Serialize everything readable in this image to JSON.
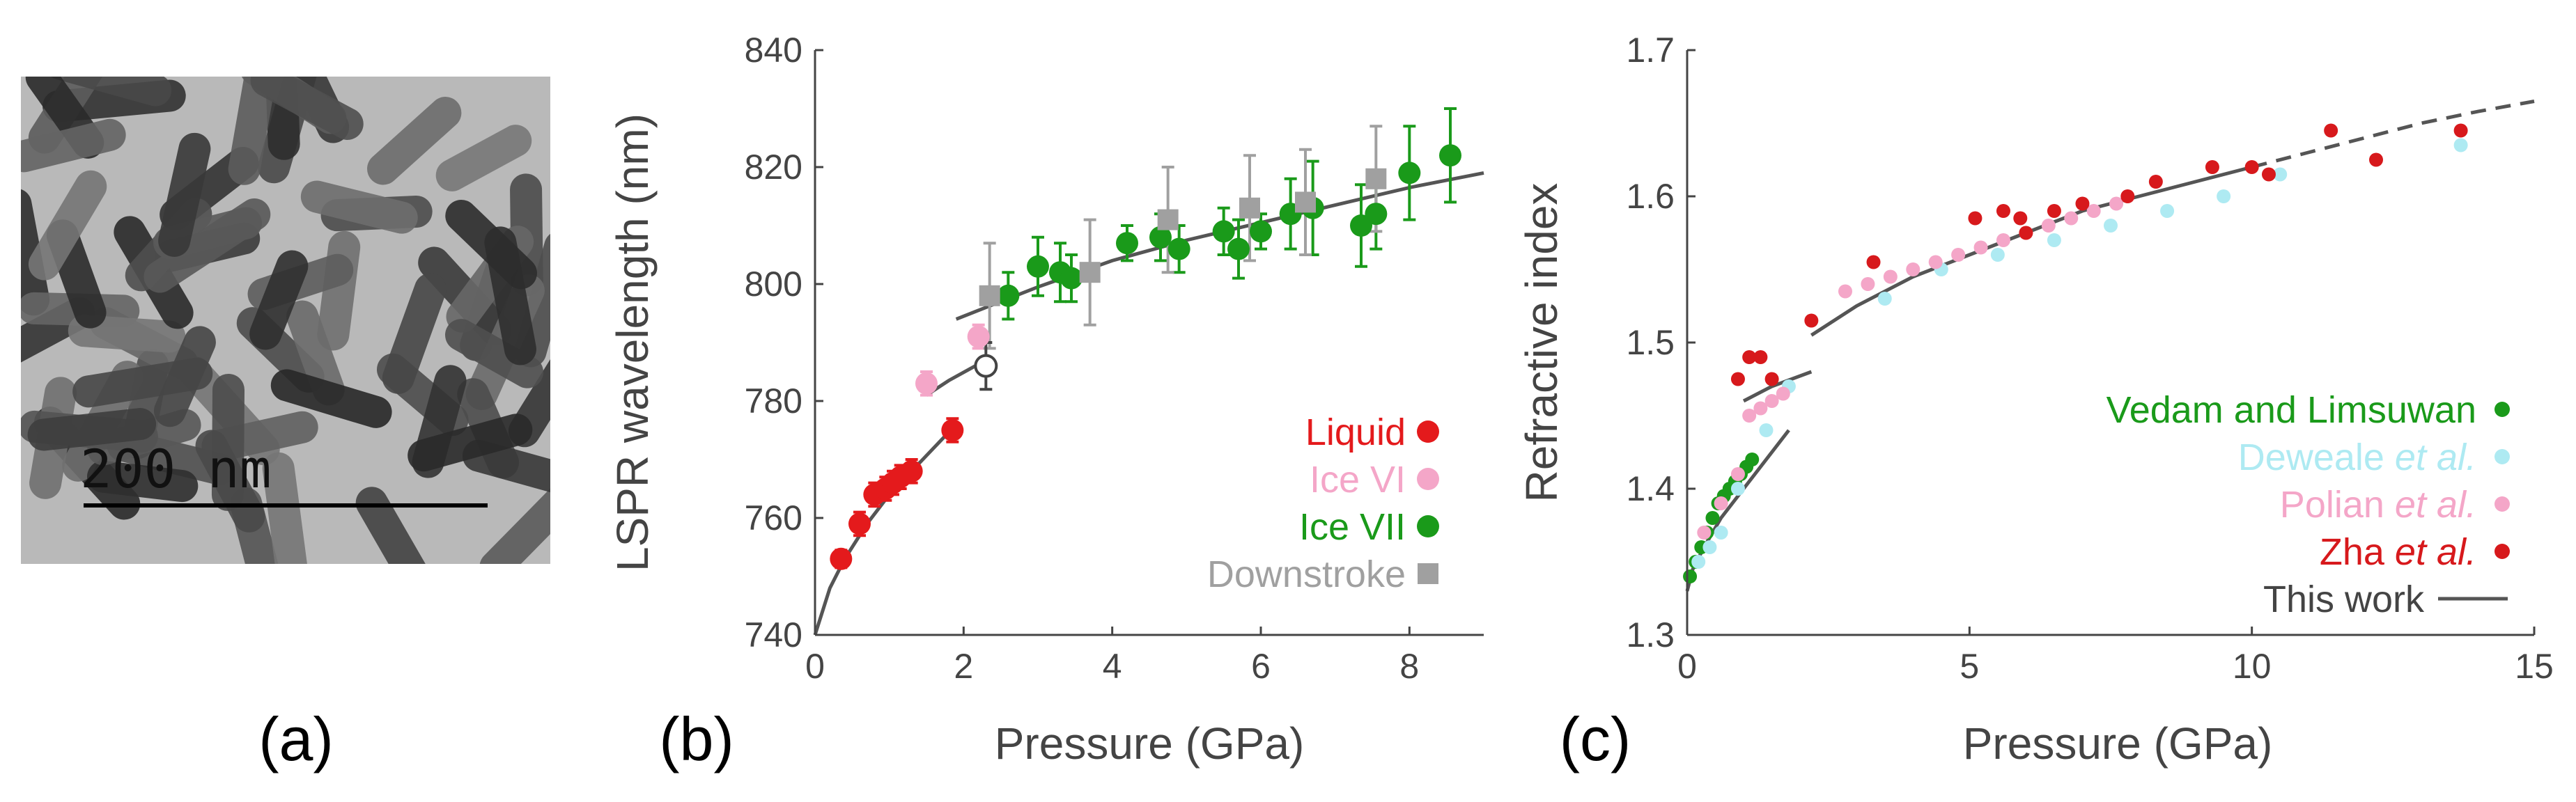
{
  "panel_labels": [
    "(a)",
    "(b)",
    "(c)"
  ],
  "image_a": {
    "scale_bar_label": "200 nm"
  },
  "chart_data": [
    {
      "type": "scatter",
      "panel": "(b)",
      "title": "",
      "xlabel": "Pressure (GPa)",
      "ylabel": "LSPR wavelength (nm)",
      "xlim": [
        0,
        9
      ],
      "ylim": [
        740,
        840
      ],
      "xticks": [
        0,
        2,
        4,
        6,
        8
      ],
      "yticks": [
        740,
        760,
        780,
        800,
        820,
        840
      ],
      "legend": {
        "position": "bottom-right"
      },
      "series": [
        {
          "name": "Liquid",
          "color": "#e41a1c",
          "marker": "circle",
          "points": [
            [
              0.35,
              753
            ],
            [
              0.6,
              759
            ],
            [
              0.8,
              764
            ],
            [
              0.95,
              765
            ],
            [
              1.05,
              766
            ],
            [
              1.15,
              767
            ],
            [
              1.3,
              768
            ],
            [
              1.85,
              775
            ]
          ],
          "errors": [
            1.5,
            2,
            2,
            2,
            2,
            2,
            2,
            2
          ]
        },
        {
          "name": "Ice VI",
          "color": "#f4a6c8",
          "marker": "circle",
          "points": [
            [
              1.5,
              783
            ],
            [
              2.2,
              791
            ]
          ],
          "errors": [
            2,
            2
          ]
        },
        {
          "name": "Ice VII",
          "color": "#1a9a1a",
          "marker": "circle",
          "points": [
            [
              2.6,
              798
            ],
            [
              3.0,
              803
            ],
            [
              3.3,
              802
            ],
            [
              3.45,
              801
            ],
            [
              4.2,
              807
            ],
            [
              4.65,
              808
            ],
            [
              4.9,
              806
            ],
            [
              5.5,
              809
            ],
            [
              5.7,
              806
            ],
            [
              6.0,
              809
            ],
            [
              6.4,
              812
            ],
            [
              6.7,
              813
            ],
            [
              7.35,
              810
            ],
            [
              7.55,
              812
            ],
            [
              8.0,
              819
            ],
            [
              8.55,
              822
            ]
          ],
          "errors": [
            4,
            5,
            5,
            4,
            3,
            4,
            4,
            4,
            5,
            3,
            6,
            8,
            7,
            6,
            8,
            8
          ]
        },
        {
          "name": "Downstroke",
          "color": "#a0a0a0",
          "marker": "square",
          "points": [
            [
              2.35,
              798
            ],
            [
              3.7,
              802
            ],
            [
              4.75,
              811
            ],
            [
              5.85,
              813
            ],
            [
              6.6,
              814
            ],
            [
              7.55,
              818
            ]
          ],
          "errors": [
            9,
            9,
            9,
            9,
            9,
            9
          ]
        },
        {
          "name": "open-point",
          "color": "#444444",
          "marker": "open-circle",
          "show_in_legend": false,
          "points": [
            [
              2.3,
              786
            ]
          ],
          "errors": [
            4
          ]
        }
      ],
      "fit_curves": [
        {
          "x": [
            0,
            0.2,
            0.4,
            0.7,
            1.0,
            1.3,
            1.6,
            1.9
          ],
          "y": [
            740,
            748,
            753,
            759,
            764,
            768,
            772,
            776
          ]
        },
        {
          "x": [
            1.5,
            1.8,
            2.3
          ],
          "y": [
            781,
            783.5,
            787
          ]
        },
        {
          "x": [
            1.9,
            2.5,
            3,
            4,
            5,
            6,
            7,
            8,
            9
          ],
          "y": [
            794,
            797,
            799.5,
            804,
            807.5,
            810.5,
            813.5,
            816.5,
            819
          ]
        }
      ]
    },
    {
      "type": "scatter",
      "panel": "(c)",
      "title": "",
      "xlabel": "Pressure (GPa)",
      "ylabel": "Refractive index",
      "xlim": [
        0,
        15
      ],
      "ylim": [
        1.3,
        1.7
      ],
      "xticks": [
        0,
        5,
        10,
        15
      ],
      "yticks": [
        "1.3",
        "1.4",
        "1.5",
        "1.6",
        "1.7"
      ],
      "legend": {
        "position": "bottom-right"
      },
      "series": [
        {
          "name": "Vedam and Limsuwan",
          "name_plain": "Vedam and Limsuwan",
          "name_italic": "",
          "color": "#1a9a1a",
          "points": [
            [
              0.05,
              1.34
            ],
            [
              0.15,
              1.35
            ],
            [
              0.25,
              1.36
            ],
            [
              0.35,
              1.37
            ],
            [
              0.45,
              1.38
            ],
            [
              0.55,
              1.39
            ],
            [
              0.65,
              1.395
            ],
            [
              0.75,
              1.4
            ],
            [
              0.85,
              1.405
            ],
            [
              0.95,
              1.41
            ],
            [
              1.05,
              1.415
            ],
            [
              1.15,
              1.42
            ]
          ]
        },
        {
          "name": "Deweale et al.",
          "name_plain": "Deweale ",
          "name_italic": "et al.",
          "color": "#aeeaf2",
          "points": [
            [
              0.2,
              1.35
            ],
            [
              0.4,
              1.36
            ],
            [
              0.6,
              1.37
            ],
            [
              0.9,
              1.4
            ],
            [
              1.4,
              1.44
            ],
            [
              1.8,
              1.47
            ],
            [
              3.5,
              1.53
            ],
            [
              4.5,
              1.55
            ],
            [
              5.5,
              1.56
            ],
            [
              6.5,
              1.57
            ],
            [
              7.5,
              1.58
            ],
            [
              8.5,
              1.59
            ],
            [
              9.5,
              1.6
            ],
            [
              10.5,
              1.615
            ],
            [
              13.7,
              1.635
            ]
          ]
        },
        {
          "name": "Polian et al.",
          "name_plain": "Polian ",
          "name_italic": "et al.",
          "color": "#f4a6c8",
          "points": [
            [
              0.3,
              1.37
            ],
            [
              0.6,
              1.39
            ],
            [
              0.9,
              1.41
            ],
            [
              1.1,
              1.45
            ],
            [
              1.3,
              1.455
            ],
            [
              1.5,
              1.46
            ],
            [
              1.7,
              1.465
            ],
            [
              2.8,
              1.535
            ],
            [
              3.2,
              1.54
            ],
            [
              3.6,
              1.545
            ],
            [
              4.0,
              1.55
            ],
            [
              4.4,
              1.555
            ],
            [
              4.8,
              1.56
            ],
            [
              5.2,
              1.565
            ],
            [
              5.6,
              1.57
            ],
            [
              6.0,
              1.575
            ],
            [
              6.4,
              1.58
            ],
            [
              6.8,
              1.585
            ],
            [
              7.2,
              1.59
            ],
            [
              7.6,
              1.595
            ]
          ]
        },
        {
          "name": "Zha et al.",
          "name_plain": "Zha ",
          "name_italic": "et al.",
          "color": "#d7191c",
          "points": [
            [
              0.9,
              1.475
            ],
            [
              1.1,
              1.49
            ],
            [
              1.3,
              1.49
            ],
            [
              1.5,
              1.475
            ],
            [
              2.2,
              1.515
            ],
            [
              3.3,
              1.555
            ],
            [
              5.1,
              1.585
            ],
            [
              5.6,
              1.59
            ],
            [
              5.9,
              1.585
            ],
            [
              6.0,
              1.575
            ],
            [
              6.5,
              1.59
            ],
            [
              7.0,
              1.595
            ],
            [
              7.8,
              1.6
            ],
            [
              8.3,
              1.61
            ],
            [
              9.3,
              1.62
            ],
            [
              10.0,
              1.62
            ],
            [
              10.3,
              1.615
            ],
            [
              11.4,
              1.645
            ],
            [
              12.2,
              1.625
            ],
            [
              13.7,
              1.645
            ]
          ]
        }
      ],
      "fit_label": "This work",
      "fit_curves": [
        {
          "style": "solid",
          "x": [
            0,
            0.1,
            0.3,
            0.6,
            1.0,
            1.4,
            1.8
          ],
          "y": [
            1.33,
            1.345,
            1.36,
            1.38,
            1.4,
            1.42,
            1.44
          ]
        },
        {
          "style": "solid",
          "x": [
            1.0,
            1.5,
            2.2
          ],
          "y": [
            1.46,
            1.47,
            1.48
          ]
        },
        {
          "style": "solid",
          "x": [
            2.2,
            3,
            4,
            5,
            6,
            7,
            8,
            9,
            10
          ],
          "y": [
            1.505,
            1.525,
            1.545,
            1.56,
            1.575,
            1.59,
            1.6,
            1.61,
            1.62
          ]
        },
        {
          "style": "dashed",
          "x": [
            10,
            11,
            12,
            13,
            14,
            15
          ],
          "y": [
            1.62,
            1.63,
            1.64,
            1.65,
            1.658,
            1.665
          ]
        }
      ]
    }
  ]
}
